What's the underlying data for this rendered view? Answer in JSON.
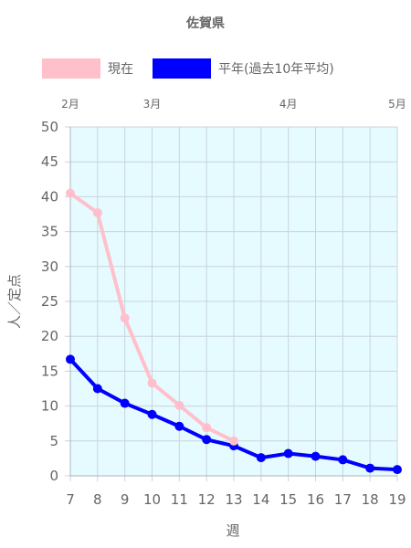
{
  "chart_data": {
    "type": "line",
    "title": "佐賀県",
    "xlabel": "週",
    "ylabel": "人／定点",
    "x": [
      7,
      8,
      9,
      10,
      11,
      12,
      13,
      14,
      15,
      16,
      17,
      18,
      19
    ],
    "xlim": [
      7,
      19
    ],
    "ylim": [
      0,
      50
    ],
    "yticks": [
      0,
      5,
      10,
      15,
      20,
      25,
      30,
      35,
      40,
      45,
      50
    ],
    "grid": true,
    "legend": "top",
    "plot_background": "#e6fbff",
    "month_labels": [
      {
        "label": "2月",
        "week": 7
      },
      {
        "label": "3月",
        "week": 10
      },
      {
        "label": "4月",
        "week": 15
      },
      {
        "label": "5月",
        "week": 19
      }
    ],
    "series": [
      {
        "name": "現在",
        "color": "#ffc0cb",
        "values": [
          40.5,
          37.7,
          22.6,
          13.3,
          10.1,
          6.9,
          5.0,
          null,
          null,
          null,
          null,
          null,
          null
        ]
      },
      {
        "name": "平年(過去10年平均)",
        "color": "#0000ff",
        "values": [
          16.7,
          12.5,
          10.4,
          8.8,
          7.1,
          5.2,
          4.3,
          2.6,
          3.2,
          2.8,
          2.3,
          1.1,
          0.9
        ]
      }
    ]
  }
}
